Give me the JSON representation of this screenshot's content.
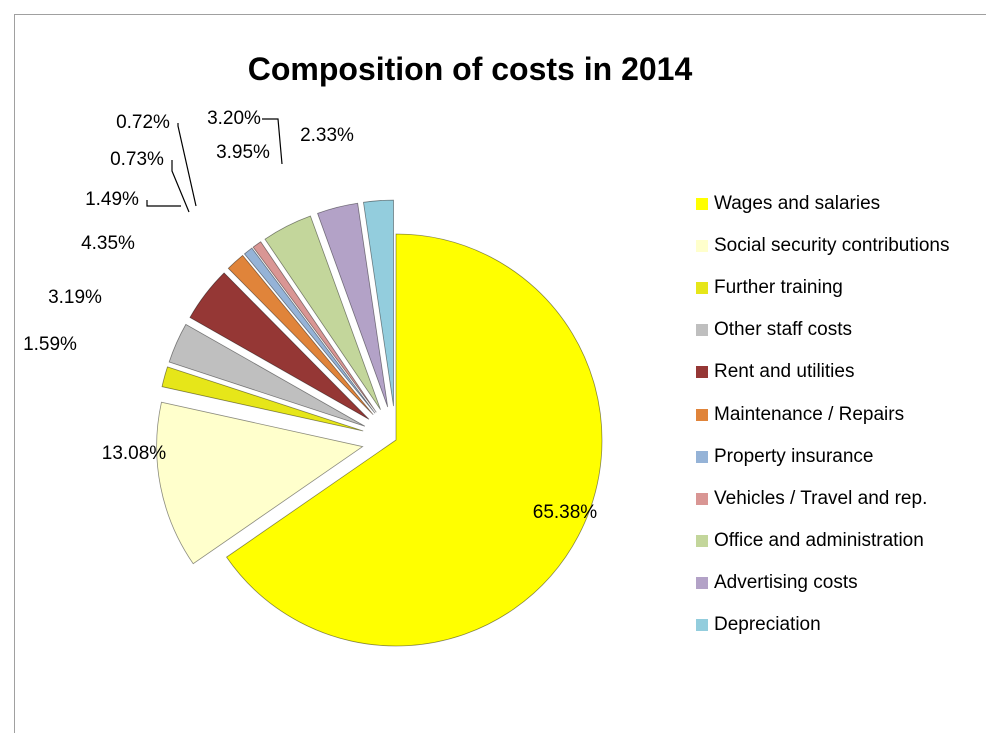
{
  "chart_data": {
    "type": "pie",
    "title": "Composition of costs in 2014",
    "unit": "%",
    "legend_position": "right",
    "slices": [
      {
        "label": "Wages and salaries",
        "value": 65.38,
        "display": "65.38%",
        "color": "#ffff00"
      },
      {
        "label": "Social security contributions",
        "value": 13.08,
        "display": "13.08%",
        "color": "#ffffcc"
      },
      {
        "label": "Further training",
        "value": 1.59,
        "display": "1.59%",
        "color": "#e6e619"
      },
      {
        "label": "Other staff costs",
        "value": 3.19,
        "display": "3.19%",
        "color": "#bfbfbf"
      },
      {
        "label": "Rent and utilities",
        "value": 4.35,
        "display": "4.35%",
        "color": "#953735"
      },
      {
        "label": "Maintenance / Repairs",
        "value": 1.49,
        "display": "1.49%",
        "color": "#e0843a"
      },
      {
        "label": "Property insurance",
        "value": 0.73,
        "display": "0.73%",
        "color": "#95b3d7"
      },
      {
        "label": "Vehicles / Travel and rep.",
        "value": 0.72,
        "display": "0.72%",
        "color": "#d99694"
      },
      {
        "label": "Office and administration",
        "value": 3.95,
        "display": "3.95%",
        "color": "#c3d69b"
      },
      {
        "label": "Advertising costs",
        "value": 3.2,
        "display": "3.20%",
        "color": "#b3a2c7"
      },
      {
        "label": "Depreciation",
        "value": 2.33,
        "display": "2.33%",
        "color": "#93cddd"
      }
    ]
  }
}
